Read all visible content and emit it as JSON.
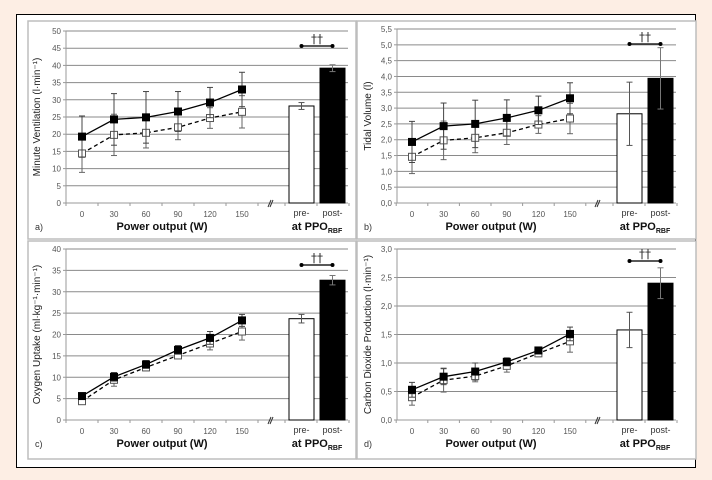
{
  "chart_data": [
    {
      "type": "line",
      "panel_label": "a)",
      "ylabel": "Minute Ventilation (l·min⁻¹)",
      "xlabel": "Power output (W)",
      "bar_group_label": "at PPO",
      "bar_group_sub": "RBF",
      "significance": "††",
      "ylim": [
        0,
        50
      ],
      "yticks": [
        0,
        5,
        10,
        15,
        20,
        25,
        30,
        35,
        40,
        45,
        50
      ],
      "ytick_labels": [
        "0",
        "5",
        "10",
        "15",
        "20",
        "25",
        "30",
        "35",
        "40",
        "45",
        "50"
      ],
      "x": [
        0,
        30,
        60,
        90,
        120,
        150
      ],
      "xtick_labels": [
        "0",
        "30",
        "60",
        "90",
        "120",
        "150"
      ],
      "series": [
        {
          "name": "post",
          "style": "solid-filled-square",
          "values": [
            19.3,
            24.3,
            24.9,
            26.6,
            29.2,
            33.0
          ],
          "err": [
            6.0,
            7.5,
            7.5,
            5.8,
            4.4,
            5.0
          ]
        },
        {
          "name": "pre",
          "style": "dashed-open-square",
          "values": [
            14.4,
            19.8,
            20.4,
            22.0,
            24.7,
            26.5
          ],
          "err": [
            5.5,
            6.0,
            4.4,
            3.6,
            3.0,
            4.7
          ]
        }
      ],
      "bars": [
        {
          "label": "pre-",
          "value": 28.2,
          "err": 1.0,
          "fill": "#ffffff"
        },
        {
          "label": "post-",
          "value": 39.2,
          "err": 1.0,
          "fill": "#000000"
        }
      ]
    },
    {
      "type": "line",
      "panel_label": "b)",
      "ylabel": "Tidal Volume (l)",
      "xlabel": "Power output (W)",
      "bar_group_label": "at PPO",
      "bar_group_sub": "RBF",
      "significance": "††",
      "ylim": [
        0,
        5.5
      ],
      "yticks": [
        0,
        0.5,
        1.0,
        1.5,
        2.0,
        2.5,
        3.0,
        3.5,
        4.0,
        4.5,
        5.0,
        5.5
      ],
      "ytick_labels": [
        "0,0",
        "0,5",
        "1,0",
        "1,5",
        "2,0",
        "2,5",
        "3,0",
        "3,5",
        "4,0",
        "4,5",
        "5,0",
        "5,5"
      ],
      "x": [
        0,
        30,
        60,
        90,
        120,
        150
      ],
      "xtick_labels": [
        "0",
        "30",
        "60",
        "90",
        "120",
        "150"
      ],
      "series": [
        {
          "name": "post",
          "style": "solid-filled-square",
          "values": [
            1.93,
            2.43,
            2.5,
            2.69,
            2.93,
            3.31
          ],
          "err": [
            0.65,
            0.73,
            0.75,
            0.57,
            0.45,
            0.49
          ]
        },
        {
          "name": "pre",
          "style": "dashed-open-square",
          "values": [
            1.46,
            1.98,
            2.06,
            2.22,
            2.48,
            2.67
          ],
          "err": [
            0.53,
            0.61,
            0.47,
            0.37,
            0.28,
            0.48
          ]
        }
      ],
      "bars": [
        {
          "label": "pre-",
          "value": 2.82,
          "err": 1.0,
          "fill": "#ffffff"
        },
        {
          "label": "post-",
          "value": 3.94,
          "err": 0.97,
          "fill": "#000000"
        }
      ]
    },
    {
      "type": "line",
      "panel_label": "c)",
      "ylabel": "Oxygen Uptake (ml·kg⁻¹·min⁻¹)",
      "xlabel": "Power output (W)",
      "bar_group_label": "at PPO",
      "bar_group_sub": "RBF",
      "significance": "††",
      "ylim": [
        0,
        40
      ],
      "yticks": [
        0,
        5,
        10,
        15,
        20,
        25,
        30,
        35,
        40
      ],
      "ytick_labels": [
        "0",
        "5",
        "10",
        "15",
        "20",
        "25",
        "30",
        "35",
        "40"
      ],
      "x": [
        0,
        30,
        60,
        90,
        120,
        150
      ],
      "xtick_labels": [
        "0",
        "30",
        "60",
        "90",
        "120",
        "150"
      ],
      "series": [
        {
          "name": "post",
          "style": "solid-filled-square",
          "values": [
            5.6,
            10.1,
            13.0,
            16.4,
            19.2,
            23.3
          ],
          "err": [
            0.6,
            1.0,
            0.9,
            1.0,
            1.5,
            1.4
          ]
        },
        {
          "name": "pre",
          "style": "dashed-open-square",
          "values": [
            4.4,
            9.4,
            12.3,
            15.1,
            17.9,
            20.7
          ],
          "err": [
            0.6,
            1.5,
            0.8,
            0.6,
            1.5,
            2.0
          ]
        }
      ],
      "bars": [
        {
          "label": "pre-",
          "value": 23.7,
          "err": 1.0,
          "fill": "#ffffff"
        },
        {
          "label": "post-",
          "value": 32.7,
          "err": 1.1,
          "fill": "#000000"
        }
      ]
    },
    {
      "type": "line",
      "panel_label": "d)",
      "ylabel": "Carbon Dioxide Production (l·min⁻¹)",
      "xlabel": "Power output (W)",
      "bar_group_label": "at PPO",
      "bar_group_sub": "RBF",
      "significance": "††",
      "ylim": [
        0,
        3.0
      ],
      "yticks": [
        0,
        0.5,
        1.0,
        1.5,
        2.0,
        2.5,
        3.0
      ],
      "ytick_labels": [
        "0,0",
        "0,5",
        "1,0",
        "1,5",
        "2,0",
        "2,5",
        "3,0"
      ],
      "x": [
        0,
        30,
        60,
        90,
        120,
        150
      ],
      "xtick_labels": [
        "0",
        "30",
        "60",
        "90",
        "120",
        "150"
      ],
      "series": [
        {
          "name": "post",
          "style": "solid-filled-square",
          "values": [
            0.53,
            0.76,
            0.85,
            1.02,
            1.22,
            1.51
          ],
          "err": [
            0.13,
            0.14,
            0.15,
            0.07,
            0.05,
            0.12
          ]
        },
        {
          "name": "pre",
          "style": "dashed-open-square",
          "values": [
            0.4,
            0.7,
            0.77,
            0.95,
            1.17,
            1.38
          ],
          "err": [
            0.14,
            0.21,
            0.1,
            0.11,
            0.06,
            0.19
          ]
        }
      ],
      "bars": [
        {
          "label": "pre-",
          "value": 1.58,
          "err": 0.31,
          "fill": "#ffffff"
        },
        {
          "label": "post-",
          "value": 2.4,
          "err": 0.27,
          "fill": "#000000"
        }
      ]
    }
  ]
}
